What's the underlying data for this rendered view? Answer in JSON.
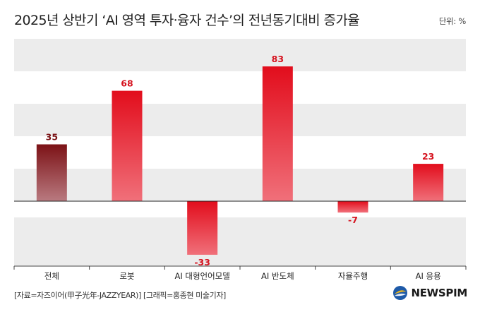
{
  "title": "2025년 상반기 ‘AI 영역 투자·융자 건수’의 전년동기대비 증가율",
  "unit_label": "단위: %",
  "footer": "[자료=자즈이어(甲子光年-JAZZYEAR)] [그래픽=홍종현 미술기자]",
  "logo": "NEWSPIM",
  "colors": {
    "bar_top": "#e20d1c",
    "bar_bottom": "#f0707a",
    "bar_first_top": "#7c1216",
    "bar_first_bottom": "#b97a80",
    "label_dark": "#7a1215",
    "label_red": "#d5121e",
    "band": "#ececec"
  },
  "chart_data": {
    "type": "bar",
    "categories": [
      "전체",
      "로봇",
      "AI 대형언어모델",
      "AI 반도체",
      "자율주행",
      "AI 응용"
    ],
    "values": [
      35,
      68,
      -33,
      83,
      -7,
      23
    ],
    "data_labels": [
      "35",
      "68",
      "-33",
      "83",
      "-7",
      "23"
    ],
    "ylim": [
      -40,
      100
    ],
    "grid": "horizontal bands",
    "legend": "none"
  }
}
